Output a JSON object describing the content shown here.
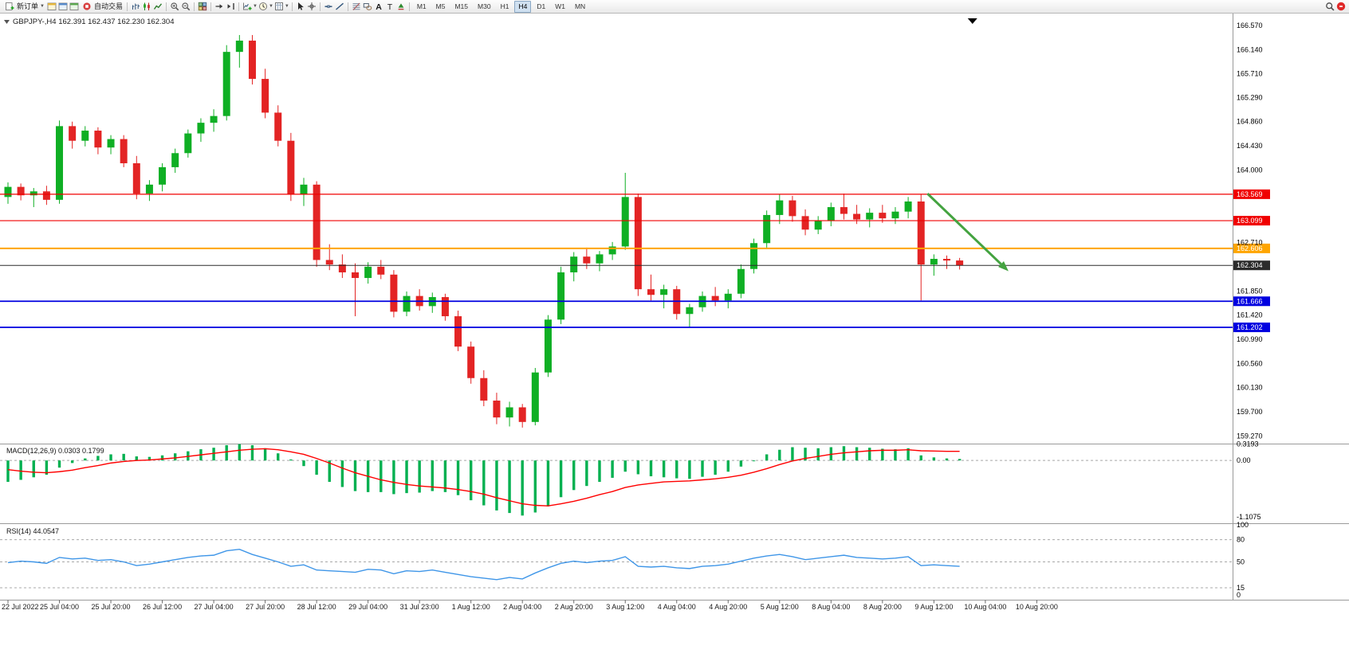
{
  "toolbar": {
    "buttons": {
      "new_order": "新订单",
      "autotrading": "自动交易"
    },
    "items": [
      {
        "type": "button",
        "label_key": "new_order",
        "icon": "new-order-icon",
        "caret": true
      },
      {
        "type": "icons",
        "names": [
          "market-watch-icon",
          "data-window-icon",
          "navigator-icon"
        ]
      },
      {
        "type": "button",
        "label_key": "autotrading",
        "icon": "autotrading-icon"
      },
      {
        "type": "sep"
      },
      {
        "type": "icons",
        "names": [
          "bar-chart-icon",
          "candlestick-icon",
          "line-chart-icon"
        ]
      },
      {
        "type": "sep"
      },
      {
        "type": "icons",
        "names": [
          "zoom-in-icon",
          "zoom-out-icon"
        ]
      },
      {
        "type": "sep"
      },
      {
        "type": "icons",
        "names": [
          "tile-windows-icon"
        ]
      },
      {
        "type": "sep"
      },
      {
        "type": "icons",
        "names": [
          "auto-scroll-icon",
          "chart-shift-icon"
        ]
      },
      {
        "type": "sep"
      },
      {
        "type": "icons",
        "names": [
          "new-chart-icon",
          "period-icon",
          "template-icon"
        ],
        "caret": true
      },
      {
        "type": "sep"
      },
      {
        "type": "icons",
        "names": [
          "cursor-icon",
          "crosshair-icon"
        ]
      },
      {
        "type": "sep"
      },
      {
        "type": "icons",
        "names": [
          "horizontal-line-icon",
          "trendline-icon"
        ]
      },
      {
        "type": "sep"
      },
      {
        "type": "icons",
        "names": [
          "fibonacci-icon",
          "shapes-icon",
          "text-icon",
          "label-icon",
          "arrows-icon"
        ]
      },
      {
        "type": "sep"
      },
      {
        "type": "timeframes"
      },
      {
        "type": "spacer"
      },
      {
        "type": "icons",
        "names": [
          "search-icon",
          "notification-icon"
        ]
      }
    ],
    "timeframes": {
      "options": [
        "M1",
        "M5",
        "M15",
        "M30",
        "H1",
        "H4",
        "D1",
        "W1",
        "MN"
      ],
      "active": "H4"
    }
  },
  "chart": {
    "symbol": "GBPJPY-,H4",
    "ohlc": {
      "open": "162.391",
      "high": "162.437",
      "low": "162.230",
      "close": "162.304"
    },
    "price_axis_ticks": [
      "166.570",
      "166.140",
      "165.710",
      "165.290",
      "164.860",
      "164.430",
      "164.000",
      "162.710",
      "161.850",
      "161.420",
      "160.990",
      "160.560",
      "160.130",
      "159.700",
      "159.270"
    ],
    "levels": [
      {
        "price": 163.569,
        "label": "163.569",
        "color": "#f00000",
        "width": 1.2,
        "type": "resistance"
      },
      {
        "price": 163.099,
        "label": "163.099",
        "color": "#f00000",
        "width": 1.2,
        "type": "resistance"
      },
      {
        "price": 162.606,
        "label": "162.606",
        "color": "#ffa500",
        "width": 2,
        "type": "pivot"
      },
      {
        "price": 162.304,
        "label": "162.304",
        "color": "#2b2b2b",
        "width": 1,
        "type": "current-price"
      },
      {
        "price": 161.666,
        "label": "161.666",
        "color": "#0000e0",
        "width": 1.8,
        "type": "support"
      },
      {
        "price": 161.202,
        "label": "161.202",
        "color": "#0000e0",
        "width": 1.8,
        "type": "support"
      }
    ],
    "colors": {
      "bull": "#0faf24",
      "bear": "#e32424",
      "arrow": "#44a340",
      "macd_hist": "#00b050",
      "macd_signal": "#ff0000",
      "rsi_line": "#3f96e8",
      "axis_text": "#000000",
      "time_text": "#1a1a1a",
      "separator": "#9a9a9a",
      "dashed_level": "#a8a8a8"
    },
    "arrow": {
      "from_slot": 71.5,
      "from_price": 163.58,
      "to_slot": 77.8,
      "to_price": 162.2
    }
  },
  "chart_data": {
    "type": "candlestick",
    "title": "GBPJPY-,H4",
    "x_label_step": 4,
    "total_slots": 95,
    "shift_marker_slot": 75,
    "price_range": [
      159.135,
      166.697
    ],
    "x_labels": [
      "22 Jul 2022",
      "25 Jul 04:00",
      "25 Jul 20:00",
      "26 Jul 12:00",
      "27 Jul 04:00",
      "27 Jul 20:00",
      "28 Jul 12:00",
      "29 Jul 04:00",
      "31 Jul 23:00",
      "1 Aug 12:00",
      "2 Aug 04:00",
      "2 Aug 20:00",
      "3 Aug 12:00",
      "4 Aug 04:00",
      "4 Aug 20:00",
      "5 Aug 12:00",
      "8 Aug 04:00",
      "8 Aug 20:00",
      "9 Aug 12:00",
      "10 Aug 04:00",
      "10 Aug 20:00"
    ],
    "candles": [
      [
        163.52,
        163.78,
        163.4,
        163.7
      ],
      [
        163.7,
        163.76,
        163.46,
        163.55
      ],
      [
        163.55,
        163.68,
        163.34,
        163.62
      ],
      [
        163.62,
        163.72,
        163.38,
        163.47
      ],
      [
        163.47,
        164.88,
        163.4,
        164.78
      ],
      [
        164.78,
        164.86,
        164.38,
        164.52
      ],
      [
        164.52,
        164.78,
        164.42,
        164.7
      ],
      [
        164.7,
        164.76,
        164.28,
        164.4
      ],
      [
        164.4,
        164.62,
        164.28,
        164.55
      ],
      [
        164.55,
        164.62,
        164.05,
        164.12
      ],
      [
        164.12,
        164.25,
        163.48,
        163.58
      ],
      [
        163.58,
        163.82,
        163.45,
        163.74
      ],
      [
        163.74,
        164.12,
        163.62,
        164.05
      ],
      [
        164.05,
        164.38,
        163.95,
        164.3
      ],
      [
        164.3,
        164.72,
        164.22,
        164.65
      ],
      [
        164.65,
        164.92,
        164.5,
        164.84
      ],
      [
        164.84,
        165.08,
        164.68,
        164.96
      ],
      [
        164.96,
        166.22,
        164.88,
        166.1
      ],
      [
        166.1,
        166.4,
        165.82,
        166.3
      ],
      [
        166.3,
        166.4,
        165.52,
        165.62
      ],
      [
        165.62,
        165.8,
        164.92,
        165.02
      ],
      [
        165.02,
        165.15,
        164.42,
        164.52
      ],
      [
        164.52,
        164.66,
        163.45,
        163.56
      ],
      [
        163.56,
        163.86,
        163.36,
        163.74
      ],
      [
        163.74,
        163.8,
        162.28,
        162.4
      ],
      [
        162.4,
        162.68,
        162.22,
        162.32
      ],
      [
        162.32,
        162.5,
        162.08,
        162.18
      ],
      [
        162.18,
        162.34,
        161.4,
        162.08
      ],
      [
        162.08,
        162.36,
        161.98,
        162.28
      ],
      [
        162.28,
        162.4,
        162.06,
        162.14
      ],
      [
        162.14,
        162.22,
        161.38,
        161.48
      ],
      [
        161.48,
        161.84,
        161.4,
        161.76
      ],
      [
        161.76,
        161.88,
        161.5,
        161.58
      ],
      [
        161.58,
        161.82,
        161.46,
        161.74
      ],
      [
        161.74,
        161.8,
        161.32,
        161.4
      ],
      [
        161.4,
        161.5,
        160.78,
        160.86
      ],
      [
        160.86,
        160.95,
        160.2,
        160.3
      ],
      [
        160.3,
        160.44,
        159.8,
        159.9
      ],
      [
        159.9,
        160.04,
        159.48,
        159.6
      ],
      [
        159.6,
        159.88,
        159.44,
        159.78
      ],
      [
        159.78,
        159.84,
        159.42,
        159.52
      ],
      [
        159.52,
        160.48,
        159.46,
        160.4
      ],
      [
        160.4,
        161.42,
        160.32,
        161.34
      ],
      [
        161.34,
        162.28,
        161.26,
        162.18
      ],
      [
        162.18,
        162.54,
        162.02,
        162.46
      ],
      [
        162.46,
        162.62,
        162.24,
        162.34
      ],
      [
        162.34,
        162.56,
        162.2,
        162.5
      ],
      [
        162.5,
        162.72,
        162.4,
        162.64
      ],
      [
        162.64,
        163.95,
        162.58,
        163.52
      ],
      [
        163.52,
        163.58,
        161.76,
        161.88
      ],
      [
        161.88,
        162.14,
        161.68,
        161.78
      ],
      [
        161.78,
        161.96,
        161.54,
        161.88
      ],
      [
        161.88,
        161.94,
        161.34,
        161.44
      ],
      [
        161.44,
        161.62,
        161.2,
        161.56
      ],
      [
        161.56,
        161.84,
        161.48,
        161.76
      ],
      [
        161.76,
        161.92,
        161.58,
        161.68
      ],
      [
        161.68,
        161.88,
        161.54,
        161.8
      ],
      [
        161.8,
        162.32,
        161.72,
        162.24
      ],
      [
        162.24,
        162.78,
        162.16,
        162.7
      ],
      [
        162.7,
        163.28,
        162.62,
        163.2
      ],
      [
        163.2,
        163.56,
        163.04,
        163.46
      ],
      [
        163.46,
        163.54,
        163.08,
        163.18
      ],
      [
        163.18,
        163.3,
        162.84,
        162.94
      ],
      [
        162.94,
        163.18,
        162.86,
        163.1
      ],
      [
        163.1,
        163.42,
        163.0,
        163.34
      ],
      [
        163.34,
        163.58,
        163.12,
        163.22
      ],
      [
        163.22,
        163.38,
        163.04,
        163.12
      ],
      [
        163.12,
        163.32,
        162.98,
        163.24
      ],
      [
        163.24,
        163.38,
        163.06,
        163.14
      ],
      [
        163.14,
        163.34,
        163.04,
        163.26
      ],
      [
        163.26,
        163.52,
        163.14,
        163.44
      ],
      [
        163.44,
        163.56,
        161.68,
        162.32
      ],
      [
        162.32,
        162.5,
        162.12,
        162.42
      ],
      [
        162.42,
        162.48,
        162.24,
        162.39
      ],
      [
        162.391,
        162.437,
        162.23,
        162.304
      ]
    ],
    "indicators": [
      {
        "name": "MACD(12,26,9)",
        "values_label": "0.0303 0.1799",
        "ticks": [
          "0.3193",
          "0.00",
          "-1.1075"
        ],
        "range": [
          -1.2,
          0.315
        ],
        "histogram": [
          -0.42,
          -0.38,
          -0.33,
          -0.28,
          -0.14,
          -0.05,
          0.04,
          0.09,
          0.12,
          0.13,
          0.08,
          0.07,
          0.1,
          0.14,
          0.18,
          0.22,
          0.25,
          0.3,
          0.32,
          0.3,
          0.24,
          0.14,
          0.02,
          -0.11,
          -0.28,
          -0.42,
          -0.52,
          -0.6,
          -0.62,
          -0.62,
          -0.66,
          -0.64,
          -0.63,
          -0.6,
          -0.62,
          -0.68,
          -0.78,
          -0.88,
          -0.98,
          -1.03,
          -1.08,
          -1.02,
          -0.9,
          -0.72,
          -0.58,
          -0.5,
          -0.42,
          -0.34,
          -0.22,
          -0.27,
          -0.31,
          -0.33,
          -0.35,
          -0.36,
          -0.32,
          -0.28,
          -0.22,
          -0.12,
          0.0,
          0.12,
          0.21,
          0.26,
          0.25,
          0.24,
          0.26,
          0.28,
          0.26,
          0.25,
          0.23,
          0.22,
          0.24,
          0.1,
          0.06,
          0.04,
          0.0303
        ],
        "signal": [
          -0.18,
          -0.21,
          -0.23,
          -0.24,
          -0.22,
          -0.19,
          -0.14,
          -0.1,
          -0.05,
          -0.02,
          0.0,
          0.01,
          0.03,
          0.05,
          0.08,
          0.11,
          0.14,
          0.17,
          0.2,
          0.22,
          0.23,
          0.21,
          0.17,
          0.12,
          0.04,
          -0.05,
          -0.15,
          -0.24,
          -0.31,
          -0.38,
          -0.43,
          -0.47,
          -0.5,
          -0.52,
          -0.54,
          -0.57,
          -0.61,
          -0.66,
          -0.73,
          -0.79,
          -0.85,
          -0.88,
          -0.89,
          -0.85,
          -0.8,
          -0.74,
          -0.67,
          -0.61,
          -0.53,
          -0.48,
          -0.45,
          -0.42,
          -0.41,
          -0.4,
          -0.38,
          -0.36,
          -0.33,
          -0.29,
          -0.23,
          -0.16,
          -0.08,
          -0.01,
          0.04,
          0.08,
          0.12,
          0.15,
          0.17,
          0.19,
          0.2,
          0.2,
          0.21,
          0.19,
          0.185,
          0.18,
          0.1799
        ]
      },
      {
        "name": "RSI(14)",
        "values_label": "44.0547",
        "ticks": [
          "100",
          "80",
          "50",
          "15",
          "0"
        ],
        "levels": [
          80,
          50,
          15
        ],
        "range": [
          0,
          100
        ],
        "values": [
          49,
          51,
          50,
          48,
          56,
          54,
          55,
          52,
          53,
          50,
          45,
          47,
          50,
          53,
          56,
          58,
          59,
          65,
          67,
          60,
          55,
          50,
          44,
          46,
          39,
          38,
          37,
          36,
          40,
          39,
          34,
          38,
          37,
          39,
          36,
          33,
          30,
          28,
          26,
          29,
          27,
          35,
          42,
          48,
          51,
          49,
          51,
          52,
          57,
          44,
          43,
          44,
          42,
          41,
          44,
          45,
          47,
          51,
          55,
          58,
          60,
          57,
          53,
          55,
          57,
          59,
          56,
          55,
          54,
          55,
          57,
          45,
          46,
          45,
          44.05
        ]
      }
    ]
  }
}
